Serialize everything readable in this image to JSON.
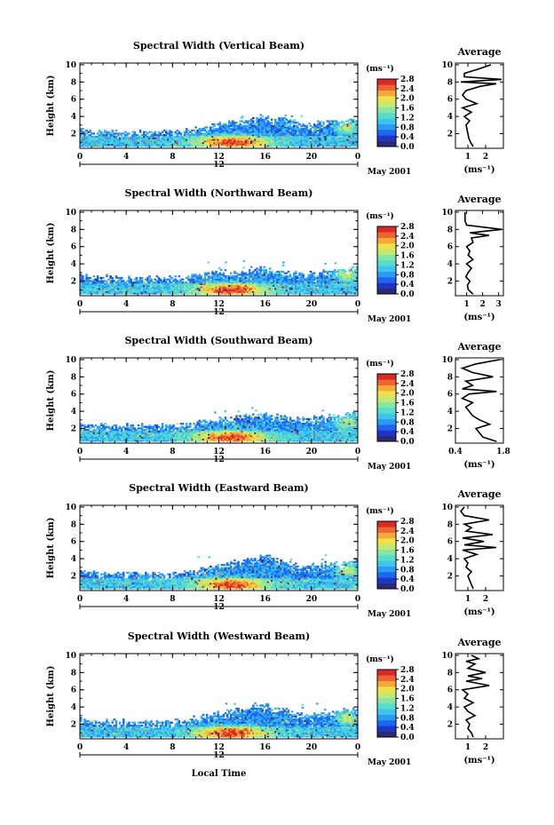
{
  "colors": {
    "colorscale": [
      "#2b2b73",
      "#1f35c8",
      "#1d66f0",
      "#2a9cf5",
      "#3ec5ee",
      "#58dccd",
      "#86e6a6",
      "#c2ea72",
      "#efe14a",
      "#f5a93a",
      "#ee6530",
      "#d92a26"
    ],
    "nodata": "#ffffff"
  },
  "chart_data": [
    {
      "type": "heatmap",
      "title": "Spectral Width (Vertical Beam)",
      "ylabel": "Height (km)",
      "xlabel": "",
      "x_ticks": [
        "0",
        "4",
        "8",
        "12",
        "16",
        "20",
        "0"
      ],
      "y_ticks": [
        "2",
        "4",
        "6",
        "8",
        "10"
      ],
      "xlim": [
        0,
        24
      ],
      "ylim": [
        0.3,
        10.2
      ],
      "day_label": "12",
      "date_label": "May 2001",
      "colorbar": {
        "unit": "(ms⁻¹)",
        "ticks": [
          "2.8",
          "2.4",
          "2.0",
          "1.6",
          "1.2",
          "0.8",
          "0.4",
          "0.0"
        ],
        "range": [
          0,
          2.8
        ]
      },
      "echo_top_km": [
        [
          0,
          2.4
        ],
        [
          3,
          2.2
        ],
        [
          6,
          2.2
        ],
        [
          9,
          2.3
        ],
        [
          10,
          2.6
        ],
        [
          11,
          2.9
        ],
        [
          12,
          3.1
        ],
        [
          13,
          3.4
        ],
        [
          14,
          3.5
        ],
        [
          15,
          3.8
        ],
        [
          16,
          4.0
        ],
        [
          17,
          3.7
        ],
        [
          18,
          3.5
        ],
        [
          19,
          3.2
        ],
        [
          20,
          3.0
        ],
        [
          21,
          3.3
        ],
        [
          22,
          3.5
        ],
        [
          23,
          3.6
        ],
        [
          24,
          3.8
        ]
      ]
    },
    {
      "type": "line",
      "title": "Average",
      "xlabel": "(ms⁻¹)",
      "x_ticks": [
        "1",
        "2"
      ],
      "y_ticks": [
        "2",
        "4",
        "6",
        "8",
        "10"
      ],
      "xlim": [
        0.3,
        3.0
      ],
      "ylim": [
        0.3,
        10.2
      ],
      "profile": {
        "height_km": [
          0.5,
          1.0,
          1.5,
          2.0,
          2.5,
          3.0,
          3.5,
          4.0,
          4.5,
          5.0,
          5.5,
          6.0,
          6.5,
          7.0,
          7.5,
          7.8,
          8.0,
          8.3,
          8.6,
          9.0,
          9.5,
          10.0
        ],
        "width_ms": [
          1.3,
          1.15,
          1.05,
          1.0,
          0.95,
          0.9,
          1.1,
          0.8,
          1.2,
          0.7,
          1.5,
          0.9,
          0.7,
          0.9,
          1.7,
          2.6,
          0.6,
          2.9,
          0.8,
          0.8,
          1.6,
          2.3
        ]
      }
    },
    {
      "type": "heatmap",
      "title": "Spectral Width (Northward Beam)",
      "ylabel": "Height (km)",
      "xlabel": "",
      "x_ticks": [
        "0",
        "4",
        "8",
        "12",
        "16",
        "20",
        "0"
      ],
      "y_ticks": [
        "2",
        "4",
        "6",
        "8",
        "10"
      ],
      "xlim": [
        0,
        24
      ],
      "ylim": [
        0.3,
        10.2
      ],
      "day_label": "12",
      "date_label": "May 2001",
      "colorbar": {
        "unit": "(ms⁻¹)",
        "ticks": [
          "2.8",
          "2.4",
          "2.0",
          "1.6",
          "1.2",
          "0.8",
          "0.4",
          "0.0"
        ],
        "range": [
          0,
          2.8
        ]
      },
      "echo_top_km": [
        [
          0,
          2.6
        ],
        [
          3,
          2.4
        ],
        [
          6,
          2.3
        ],
        [
          9,
          2.4
        ],
        [
          10,
          2.7
        ],
        [
          11,
          2.8
        ],
        [
          12,
          3.0
        ],
        [
          13,
          3.0
        ],
        [
          14,
          3.2
        ],
        [
          15,
          3.5
        ],
        [
          16,
          3.4
        ],
        [
          17,
          3.2
        ],
        [
          18,
          3.0
        ],
        [
          19,
          2.8
        ],
        [
          20,
          2.9
        ],
        [
          21,
          3.1
        ],
        [
          22,
          3.3
        ],
        [
          23,
          3.5
        ],
        [
          24,
          3.6
        ]
      ]
    },
    {
      "type": "line",
      "title": "Average",
      "xlabel": "(ms⁻¹)",
      "x_ticks": [
        "1",
        "2",
        "3"
      ],
      "y_ticks": [
        "2",
        "4",
        "6",
        "8",
        "10"
      ],
      "xlim": [
        0.3,
        3.3
      ],
      "ylim": [
        0.3,
        10.2
      ],
      "profile": {
        "height_km": [
          0.5,
          1.0,
          1.5,
          2.0,
          2.5,
          3.0,
          3.5,
          4.0,
          4.5,
          5.0,
          5.5,
          6.0,
          6.5,
          7.0,
          7.3,
          7.6,
          8.0,
          8.5,
          9.0,
          9.5,
          10.0
        ],
        "width_ms": [
          1.4,
          1.1,
          1.05,
          1.2,
          0.95,
          1.1,
          1.3,
          1.0,
          1.4,
          1.1,
          1.2,
          1.0,
          1.4,
          1.3,
          2.4,
          1.2,
          3.2,
          1.0,
          0.9,
          0.9,
          0.9
        ]
      }
    },
    {
      "type": "heatmap",
      "title": "Spectral Width (Southward Beam)",
      "ylabel": "Height (km)",
      "xlabel": "",
      "x_ticks": [
        "0",
        "4",
        "8",
        "12",
        "16",
        "20",
        "0"
      ],
      "y_ticks": [
        "2",
        "4",
        "6",
        "8",
        "10"
      ],
      "xlim": [
        0,
        24
      ],
      "ylim": [
        0.3,
        10.2
      ],
      "day_label": "12",
      "date_label": "May 2001",
      "colorbar": {
        "unit": "(ms⁻¹)",
        "ticks": [
          "2.8",
          "2.4",
          "2.0",
          "1.6",
          "1.2",
          "0.8",
          "0.4",
          "0.0"
        ],
        "range": [
          0,
          2.8
        ]
      },
      "echo_top_km": [
        [
          0,
          2.5
        ],
        [
          3,
          2.3
        ],
        [
          6,
          2.3
        ],
        [
          9,
          2.4
        ],
        [
          10,
          2.6
        ],
        [
          11,
          2.8
        ],
        [
          12,
          3.0
        ],
        [
          13,
          3.1
        ],
        [
          14,
          3.4
        ],
        [
          15,
          3.5
        ],
        [
          16,
          3.6
        ],
        [
          17,
          3.4
        ],
        [
          18,
          3.2
        ],
        [
          19,
          3.0
        ],
        [
          20,
          3.1
        ],
        [
          21,
          3.3
        ],
        [
          22,
          3.5
        ],
        [
          23,
          3.6
        ],
        [
          24,
          3.7
        ]
      ]
    },
    {
      "type": "line",
      "title": "Average",
      "xlabel": "(ms⁻¹)",
      "x_ticks": [
        "0.4",
        "1.8"
      ],
      "y_ticks": [
        "2",
        "4",
        "6",
        "8",
        "10"
      ],
      "xlim": [
        0.4,
        1.8
      ],
      "ylim": [
        0.3,
        10.2
      ],
      "profile": {
        "height_km": [
          0.5,
          1.0,
          1.5,
          2.0,
          2.5,
          3.0,
          3.5,
          4.0,
          4.5,
          5.0,
          5.5,
          6.0,
          6.3,
          6.6,
          7.0,
          7.5,
          8.0,
          8.5,
          9.0,
          9.5,
          10.0
        ],
        "width_ms": [
          1.6,
          1.2,
          1.1,
          1.0,
          1.4,
          1.1,
          0.9,
          0.8,
          0.7,
          0.9,
          0.6,
          0.8,
          1.6,
          0.6,
          0.9,
          0.7,
          1.5,
          0.9,
          0.6,
          1.0,
          1.7
        ]
      }
    },
    {
      "type": "heatmap",
      "title": "Spectral Width (Eastward Beam)",
      "ylabel": "Height (km)",
      "xlabel": "",
      "x_ticks": [
        "0",
        "4",
        "8",
        "12",
        "16",
        "20",
        "0"
      ],
      "y_ticks": [
        "2",
        "4",
        "6",
        "8",
        "10"
      ],
      "xlim": [
        0,
        24
      ],
      "ylim": [
        0.3,
        10.2
      ],
      "day_label": "12",
      "date_label": "May 2001",
      "colorbar": {
        "unit": "(ms⁻¹)",
        "ticks": [
          "2.8",
          "2.4",
          "2.0",
          "1.6",
          "1.2",
          "0.8",
          "0.4",
          "0.0"
        ],
        "range": [
          0,
          2.8
        ]
      },
      "echo_top_km": [
        [
          0,
          2.5
        ],
        [
          3,
          2.3
        ],
        [
          6,
          2.2
        ],
        [
          9,
          2.3
        ],
        [
          10,
          2.6
        ],
        [
          11,
          2.9
        ],
        [
          12,
          3.2
        ],
        [
          13,
          3.5
        ],
        [
          14,
          3.8
        ],
        [
          15,
          4.0
        ],
        [
          16,
          4.3
        ],
        [
          17,
          3.9
        ],
        [
          18,
          3.5
        ],
        [
          19,
          3.1
        ],
        [
          20,
          3.0
        ],
        [
          21,
          3.3
        ],
        [
          22,
          3.5
        ],
        [
          23,
          3.6
        ],
        [
          24,
          3.8
        ]
      ]
    },
    {
      "type": "line",
      "title": "Average",
      "xlabel": "(ms⁻¹)",
      "x_ticks": [
        "1",
        "2"
      ],
      "y_ticks": [
        "2",
        "4",
        "6",
        "8",
        "10"
      ],
      "xlim": [
        0.3,
        3.0
      ],
      "ylim": [
        0.3,
        10.2
      ],
      "profile": {
        "height_km": [
          0.5,
          1.0,
          1.5,
          2.0,
          2.5,
          3.0,
          3.5,
          4.0,
          4.5,
          5.0,
          5.3,
          5.6,
          6.0,
          6.4,
          6.8,
          7.2,
          7.6,
          8.0,
          8.5,
          9.0,
          9.5,
          10.0
        ],
        "width_ms": [
          1.3,
          1.2,
          1.1,
          1.0,
          1.2,
          0.9,
          1.0,
          0.8,
          1.5,
          0.7,
          2.6,
          0.8,
          1.9,
          0.7,
          2.4,
          0.9,
          1.2,
          0.8,
          2.2,
          0.8,
          0.6,
          0.8
        ]
      }
    },
    {
      "type": "heatmap",
      "title": "Spectral Width (Westward Beam)",
      "ylabel": "Height (km)",
      "xlabel": "Local Time",
      "x_ticks": [
        "0",
        "4",
        "8",
        "12",
        "16",
        "20",
        "0"
      ],
      "y_ticks": [
        "2",
        "4",
        "6",
        "8",
        "10"
      ],
      "xlim": [
        0,
        24
      ],
      "ylim": [
        0.3,
        10.2
      ],
      "day_label": "12",
      "date_label": "May 2001",
      "colorbar": {
        "unit": "(ms⁻¹)",
        "ticks": [
          "2.8",
          "2.4",
          "2.0",
          "1.6",
          "1.2",
          "0.8",
          "0.4",
          "0.0"
        ],
        "range": [
          0,
          2.8
        ]
      },
      "echo_top_km": [
        [
          0,
          2.5
        ],
        [
          3,
          2.3
        ],
        [
          6,
          2.3
        ],
        [
          9,
          2.4
        ],
        [
          10,
          2.7
        ],
        [
          11,
          3.0
        ],
        [
          12,
          3.2
        ],
        [
          13,
          3.5
        ],
        [
          14,
          3.8
        ],
        [
          15,
          4.0
        ],
        [
          16,
          4.2
        ],
        [
          17,
          3.8
        ],
        [
          18,
          3.5
        ],
        [
          19,
          3.1
        ],
        [
          20,
          3.0
        ],
        [
          21,
          3.3
        ],
        [
          22,
          3.5
        ],
        [
          23,
          3.6
        ],
        [
          24,
          3.8
        ]
      ]
    },
    {
      "type": "line",
      "title": "Average",
      "xlabel": "(ms⁻¹)",
      "x_ticks": [
        "1",
        "2"
      ],
      "y_ticks": [
        "2",
        "4",
        "6",
        "8",
        "10"
      ],
      "xlim": [
        0.3,
        3.0
      ],
      "ylim": [
        0.3,
        10.2
      ],
      "profile": {
        "height_km": [
          0.5,
          1.0,
          1.5,
          2.0,
          2.5,
          3.0,
          3.5,
          4.0,
          4.5,
          5.0,
          5.5,
          6.0,
          6.5,
          7.0,
          7.3,
          7.6,
          8.0,
          8.5,
          9.0,
          9.3,
          9.6,
          10.0
        ],
        "width_ms": [
          1.3,
          1.2,
          1.0,
          1.1,
          0.9,
          1.4,
          1.0,
          0.8,
          1.3,
          0.8,
          1.0,
          0.7,
          2.2,
          0.9,
          1.8,
          1.0,
          2.0,
          1.0,
          1.4,
          0.9,
          1.6,
          1.2
        ]
      }
    }
  ]
}
